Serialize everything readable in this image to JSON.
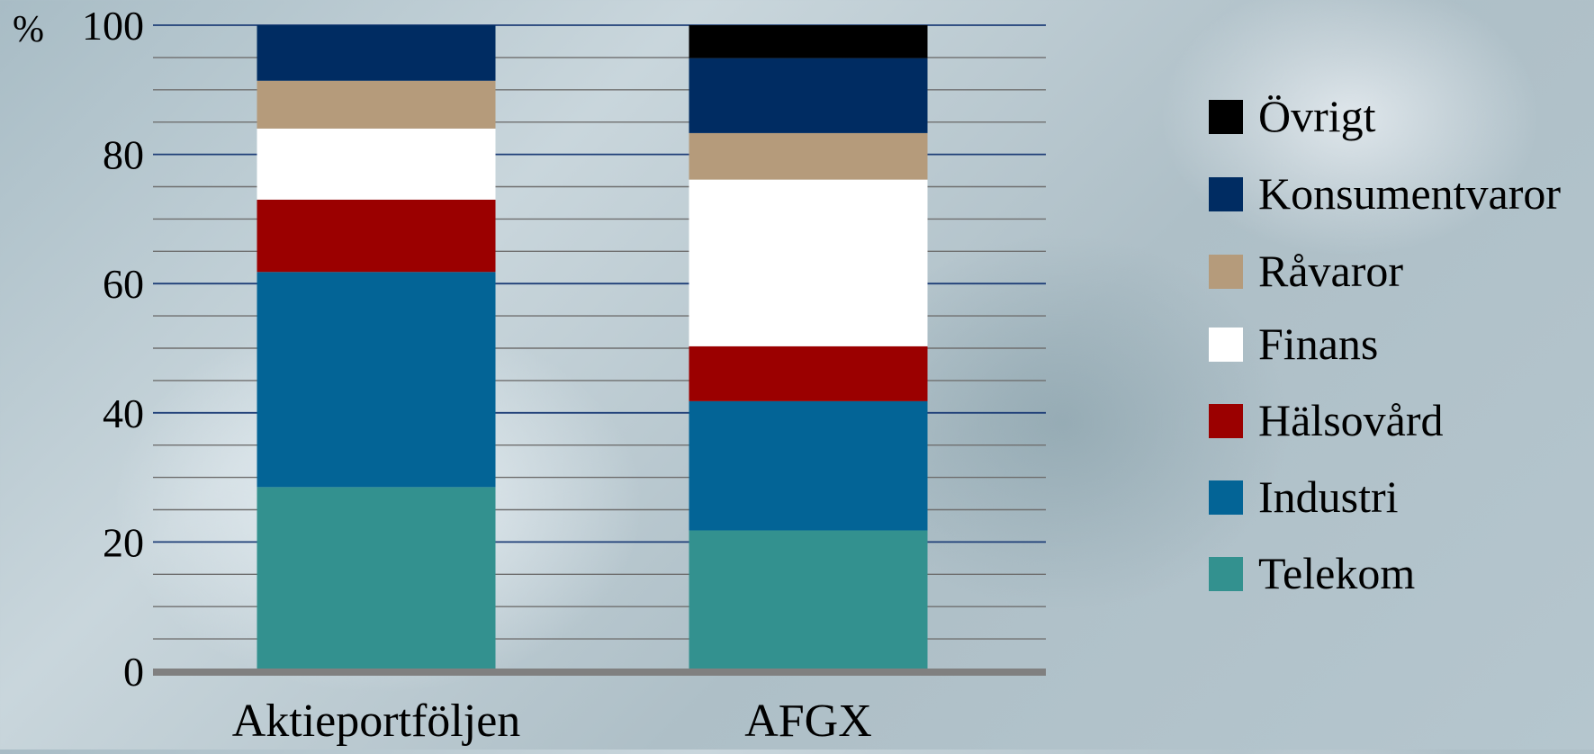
{
  "chart_data": {
    "type": "bar",
    "stacked": true,
    "unit_label": "%",
    "categories": [
      "Aktieportföljen",
      "AFGX"
    ],
    "ylim": [
      0,
      100
    ],
    "yticks": [
      0,
      20,
      40,
      60,
      80,
      100
    ],
    "minor_tick_step": 5,
    "legend_position": "right",
    "series": [
      {
        "name": "Telekom",
        "color": "#33918f",
        "values": [
          28.5,
          21.8
        ]
      },
      {
        "name": "Industri",
        "color": "#036496",
        "values": [
          33.3,
          20.0
        ]
      },
      {
        "name": "Hälsovård",
        "color": "#9b0000",
        "values": [
          11.2,
          8.5
        ]
      },
      {
        "name": "Finans",
        "color": "#ffffff",
        "values": [
          11.0,
          25.8
        ]
      },
      {
        "name": "Råvaror",
        "color": "#b59b7b",
        "values": [
          7.4,
          7.2
        ]
      },
      {
        "name": "Konsumentvaror",
        "color": "#002c62",
        "values": [
          8.6,
          11.6
        ]
      },
      {
        "name": "Övrigt",
        "color": "#000000",
        "values": [
          0,
          5.1
        ]
      }
    ],
    "legend_order": [
      "Övrigt",
      "Konsumentvaror",
      "Råvaror",
      "Finans",
      "Hälsovård",
      "Industri",
      "Telekom"
    ]
  }
}
